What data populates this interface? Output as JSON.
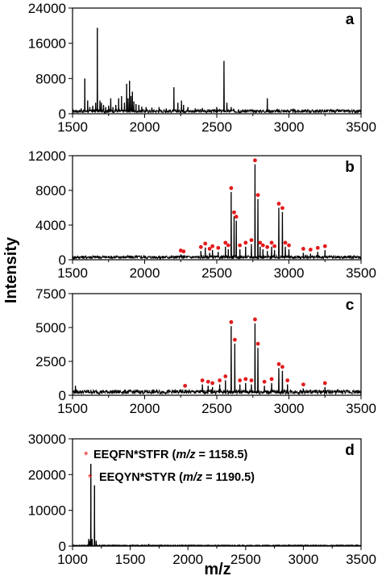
{
  "figure": {
    "ylabel": "Intensity",
    "xlabel": "m/z"
  },
  "colors": {
    "spectrum": "#000000",
    "marker": "#e31a1c",
    "star": "#e31a1c"
  },
  "chart_data": [
    {
      "type": "line",
      "panel": "a",
      "xlim": [
        1500,
        3500
      ],
      "ylim": [
        0,
        24000
      ],
      "x_ticks": [
        "1500",
        "2000",
        "2500",
        "3000",
        "3500"
      ],
      "y_ticks": [
        "0",
        "8000",
        "16000",
        "24000"
      ],
      "baseline": 600,
      "peaks": [
        {
          "x": 1560,
          "y": 1200
        },
        {
          "x": 1585,
          "y": 8000
        },
        {
          "x": 1605,
          "y": 3000
        },
        {
          "x": 1620,
          "y": 1500
        },
        {
          "x": 1640,
          "y": 1800
        },
        {
          "x": 1660,
          "y": 2500
        },
        {
          "x": 1672,
          "y": 19500
        },
        {
          "x": 1690,
          "y": 3000
        },
        {
          "x": 1700,
          "y": 2500
        },
        {
          "x": 1715,
          "y": 2000
        },
        {
          "x": 1730,
          "y": 1500
        },
        {
          "x": 1750,
          "y": 1800
        },
        {
          "x": 1765,
          "y": 3500
        },
        {
          "x": 1780,
          "y": 1500
        },
        {
          "x": 1800,
          "y": 2000
        },
        {
          "x": 1820,
          "y": 3500
        },
        {
          "x": 1840,
          "y": 4000
        },
        {
          "x": 1860,
          "y": 2500
        },
        {
          "x": 1875,
          "y": 6800
        },
        {
          "x": 1885,
          "y": 3500
        },
        {
          "x": 1895,
          "y": 7500
        },
        {
          "x": 1905,
          "y": 4000
        },
        {
          "x": 1915,
          "y": 5000
        },
        {
          "x": 1925,
          "y": 2800
        },
        {
          "x": 1940,
          "y": 2200
        },
        {
          "x": 1960,
          "y": 2000
        },
        {
          "x": 1980,
          "y": 1600
        },
        {
          "x": 2010,
          "y": 1500
        },
        {
          "x": 2050,
          "y": 1400
        },
        {
          "x": 2100,
          "y": 1500
        },
        {
          "x": 2150,
          "y": 1200
        },
        {
          "x": 2203,
          "y": 6000
        },
        {
          "x": 2230,
          "y": 2500
        },
        {
          "x": 2255,
          "y": 3000
        },
        {
          "x": 2270,
          "y": 2000
        },
        {
          "x": 2300,
          "y": 1500
        },
        {
          "x": 2350,
          "y": 1200
        },
        {
          "x": 2400,
          "y": 1300
        },
        {
          "x": 2450,
          "y": 1000
        },
        {
          "x": 2500,
          "y": 1500
        },
        {
          "x": 2550,
          "y": 12000
        },
        {
          "x": 2570,
          "y": 2500
        },
        {
          "x": 2600,
          "y": 1500
        },
        {
          "x": 2650,
          "y": 1000
        },
        {
          "x": 2700,
          "y": 1000
        },
        {
          "x": 2800,
          "y": 900
        },
        {
          "x": 2850,
          "y": 3500
        },
        {
          "x": 2950,
          "y": 800
        },
        {
          "x": 3100,
          "y": 700
        },
        {
          "x": 3300,
          "y": 700
        }
      ]
    },
    {
      "type": "line",
      "panel": "b",
      "xlim": [
        1500,
        3500
      ],
      "ylim": [
        0,
        12000
      ],
      "x_ticks": [
        "1500",
        "2000",
        "2500",
        "3000",
        "3500"
      ],
      "y_ticks": [
        "0",
        "4000",
        "8000",
        "12000"
      ],
      "baseline": 300,
      "peaks": [
        {
          "x": 2250,
          "y": 600,
          "marked": true
        },
        {
          "x": 2270,
          "y": 500,
          "marked": true
        },
        {
          "x": 2390,
          "y": 1000,
          "marked": true
        },
        {
          "x": 2420,
          "y": 1400,
          "marked": true
        },
        {
          "x": 2450,
          "y": 800,
          "marked": true
        },
        {
          "x": 2470,
          "y": 1100,
          "marked": true
        },
        {
          "x": 2510,
          "y": 900,
          "marked": true
        },
        {
          "x": 2560,
          "y": 1500,
          "marked": true
        },
        {
          "x": 2580,
          "y": 1200,
          "marked": true
        },
        {
          "x": 2600,
          "y": 7800,
          "marked": true
        },
        {
          "x": 2620,
          "y": 5000,
          "marked": true
        },
        {
          "x": 2635,
          "y": 4500,
          "marked": true
        },
        {
          "x": 2660,
          "y": 1200,
          "marked": true
        },
        {
          "x": 2700,
          "y": 1500,
          "marked": true
        },
        {
          "x": 2740,
          "y": 1800,
          "marked": true
        },
        {
          "x": 2765,
          "y": 11000,
          "marked": true
        },
        {
          "x": 2785,
          "y": 7000,
          "marked": true
        },
        {
          "x": 2800,
          "y": 1500,
          "marked": true
        },
        {
          "x": 2820,
          "y": 1200,
          "marked": true
        },
        {
          "x": 2850,
          "y": 1000,
          "marked": true
        },
        {
          "x": 2880,
          "y": 1500,
          "marked": true
        },
        {
          "x": 2900,
          "y": 1100,
          "marked": true
        },
        {
          "x": 2930,
          "y": 6000,
          "marked": true
        },
        {
          "x": 2955,
          "y": 5500,
          "marked": true
        },
        {
          "x": 2975,
          "y": 1500,
          "marked": true
        },
        {
          "x": 3000,
          "y": 1200,
          "marked": true
        },
        {
          "x": 3100,
          "y": 800,
          "marked": true
        },
        {
          "x": 3150,
          "y": 700,
          "marked": true
        },
        {
          "x": 3200,
          "y": 900,
          "marked": true
        },
        {
          "x": 3250,
          "y": 1100,
          "marked": true
        },
        {
          "x": 3420,
          "y": 400,
          "marked": false
        }
      ]
    },
    {
      "type": "line",
      "panel": "c",
      "xlim": [
        1500,
        3500
      ],
      "ylim": [
        0,
        7500
      ],
      "x_ticks": [
        "1500",
        "2000",
        "2500",
        "3000",
        "3500"
      ],
      "y_ticks": [
        "0",
        "2500",
        "5000",
        "7500"
      ],
      "baseline": 250,
      "peaks": [
        {
          "x": 1520,
          "y": 700,
          "marked": false
        },
        {
          "x": 2280,
          "y": 400,
          "marked": true
        },
        {
          "x": 2400,
          "y": 800,
          "marked": true
        },
        {
          "x": 2440,
          "y": 700,
          "marked": true
        },
        {
          "x": 2470,
          "y": 600,
          "marked": true
        },
        {
          "x": 2520,
          "y": 800,
          "marked": true
        },
        {
          "x": 2560,
          "y": 1100,
          "marked": true
        },
        {
          "x": 2600,
          "y": 5100,
          "marked": true
        },
        {
          "x": 2625,
          "y": 3800,
          "marked": true
        },
        {
          "x": 2660,
          "y": 800,
          "marked": true
        },
        {
          "x": 2700,
          "y": 900,
          "marked": true
        },
        {
          "x": 2740,
          "y": 800,
          "marked": true
        },
        {
          "x": 2765,
          "y": 5300,
          "marked": true
        },
        {
          "x": 2785,
          "y": 3500,
          "marked": true
        },
        {
          "x": 2830,
          "y": 700,
          "marked": true
        },
        {
          "x": 2880,
          "y": 900,
          "marked": true
        },
        {
          "x": 2930,
          "y": 2000,
          "marked": true
        },
        {
          "x": 2955,
          "y": 1800,
          "marked": true
        },
        {
          "x": 2990,
          "y": 800,
          "marked": true
        },
        {
          "x": 3100,
          "y": 500,
          "marked": true
        },
        {
          "x": 3250,
          "y": 600,
          "marked": true
        }
      ]
    },
    {
      "type": "line",
      "panel": "d",
      "xlim": [
        1000,
        3500
      ],
      "ylim": [
        0,
        30000
      ],
      "x_ticks": [
        "1000",
        "1500",
        "2000",
        "2500",
        "3000",
        "3500"
      ],
      "y_ticks": [
        "0",
        "10000",
        "20000",
        "30000"
      ],
      "baseline": 200,
      "peaks": [
        {
          "x": 1140,
          "y": 2000
        },
        {
          "x": 1150,
          "y": 1500
        },
        {
          "x": 1158.5,
          "y": 23000
        },
        {
          "x": 1170,
          "y": 2000
        },
        {
          "x": 1190.5,
          "y": 17000
        },
        {
          "x": 1205,
          "y": 1500
        },
        {
          "x": 1660,
          "y": 600
        }
      ],
      "annotations": [
        {
          "star": "*",
          "text": "EEQFN*STFR",
          "paren_open": "(",
          "mz_label": "m/z",
          "mz_value": " = 1158.5)"
        },
        {
          "star": "*",
          "text": "EEQYN*STYR",
          "paren_open": "(",
          "mz_label": "m/z",
          "mz_value": " = 1190.5)"
        }
      ]
    }
  ]
}
